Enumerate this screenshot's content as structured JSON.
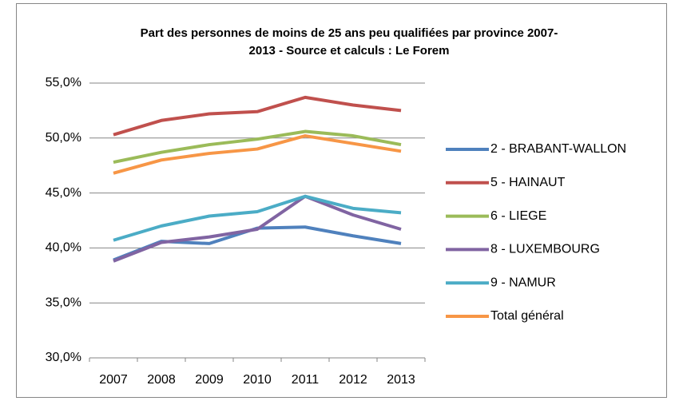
{
  "chart_data": {
    "type": "line",
    "title": [
      "Part des personnes de moins de 25 ans peu qualifiées par province 2007-",
      "2013 - Source et calculs : Le Forem"
    ],
    "categories": [
      "2007",
      "2008",
      "2009",
      "2010",
      "2011",
      "2012",
      "2013"
    ],
    "series": [
      {
        "name": "2 - BRABANT-WALLON",
        "color": "#4f81bd",
        "values": [
          38.9,
          40.6,
          40.4,
          41.8,
          41.9,
          41.1,
          40.4
        ]
      },
      {
        "name": "5 - HAINAUT",
        "color": "#c0504d",
        "values": [
          50.3,
          51.6,
          52.2,
          52.4,
          53.7,
          53.0,
          52.5
        ]
      },
      {
        "name": "6 - LIEGE",
        "color": "#9bbb59",
        "values": [
          47.8,
          48.7,
          49.4,
          49.9,
          50.6,
          50.2,
          49.4
        ]
      },
      {
        "name": "8 - LUXEMBOURG",
        "color": "#8064a2",
        "values": [
          38.8,
          40.5,
          41.0,
          41.7,
          44.7,
          43.0,
          41.7
        ]
      },
      {
        "name": "9 - NAMUR",
        "color": "#4bacc6",
        "values": [
          40.7,
          42.0,
          42.9,
          43.3,
          44.7,
          43.6,
          43.2
        ]
      },
      {
        "name": "Total général",
        "color": "#f79646",
        "values": [
          46.8,
          48.0,
          48.6,
          49.0,
          50.2,
          49.5,
          48.8
        ]
      }
    ],
    "ylim": [
      30,
      55
    ],
    "yticks": [
      {
        "value": 30,
        "label": "30,0%"
      },
      {
        "value": 35,
        "label": "35,0%"
      },
      {
        "value": 40,
        "label": "40,0%"
      },
      {
        "value": 45,
        "label": "45,0%"
      },
      {
        "value": 50,
        "label": "50,0%"
      },
      {
        "value": 55,
        "label": "55,0%"
      }
    ],
    "grid": true,
    "legend": "right"
  }
}
